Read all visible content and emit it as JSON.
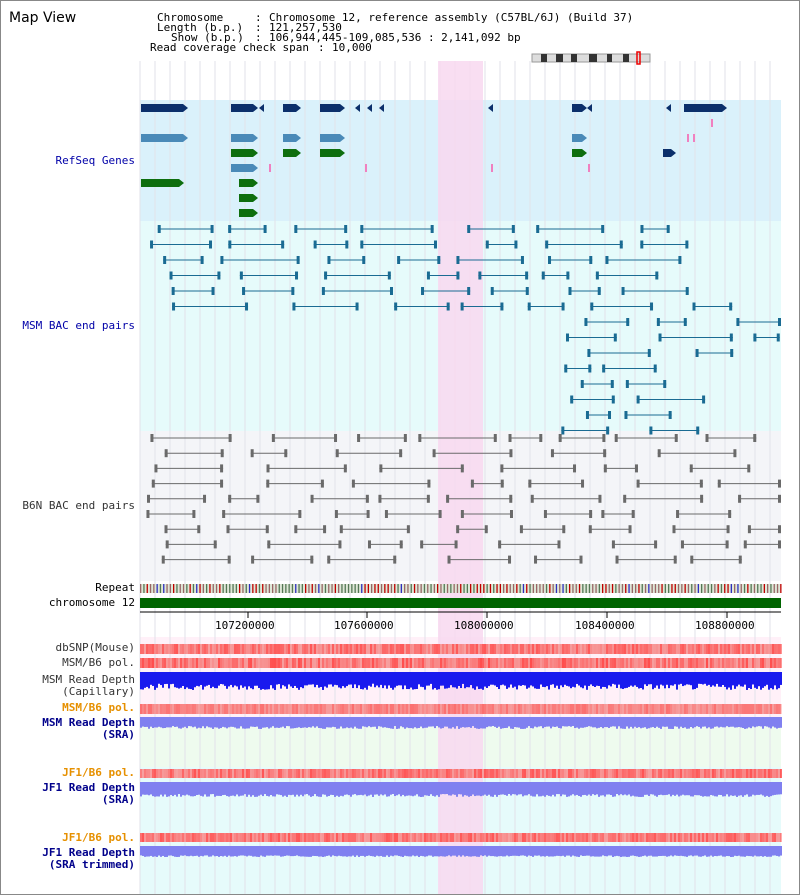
{
  "title": "Map View",
  "info": {
    "chromosome_key": "Chromosome",
    "chromosome_value": "Chromosome 12, reference assembly (C57BL/6J) (Build 37)",
    "length_key": "Length (b.p.)",
    "length_value": "121,257,530",
    "show_key": "Show (b.p.)",
    "show_value": "106,944,445-109,085,536 : 2,141,092 bp",
    "coverage_key": "Read coverage check span",
    "coverage_value": "10,000"
  },
  "tracks": {
    "refseq": "RefSeq Genes",
    "msm_bac": "MSM BAC end pairs",
    "b6n_bac": "B6N BAC end pairs",
    "repeat": "Repeat",
    "chromosome": "chromosome 12",
    "dbsnp": "dbSNP(Mouse)",
    "msm_b6_pol_1": "MSM/B6 pol.",
    "msm_read_depth_cap_1": "MSM Read Depth",
    "msm_read_depth_cap_2": "(Capillary)",
    "msm_b6_pol_2": "MSM/B6 pol.",
    "msm_read_depth_sra_1": "MSM Read Depth",
    "msm_read_depth_sra_2": "(SRA)",
    "jf1_b6_pol_1": "JF1/B6 pol.",
    "jf1_read_depth_sra_1": "JF1 Read Depth",
    "jf1_read_depth_sra_2": "(SRA)",
    "jf1_b6_pol_2": "JF1/B6 pol.",
    "jf1_read_depth_trim_1": "JF1 Read Depth",
    "jf1_read_depth_trim_2": "(SRA trimmed)"
  },
  "axis_ticks": [
    "107200000",
    "107600000",
    "108000000",
    "108400000",
    "108800000"
  ],
  "colors": {
    "refseq_bg": "#daf1fb",
    "msm_bg": "#e6fbfb",
    "b6n_bg": "#f4f5f8",
    "highlight": "#f8d8f0",
    "chromosome_bar": "#006400",
    "polymorphism": "#ff4d4d",
    "depth_blue": "#1a1aee",
    "depth_light": "#8080f0"
  }
}
